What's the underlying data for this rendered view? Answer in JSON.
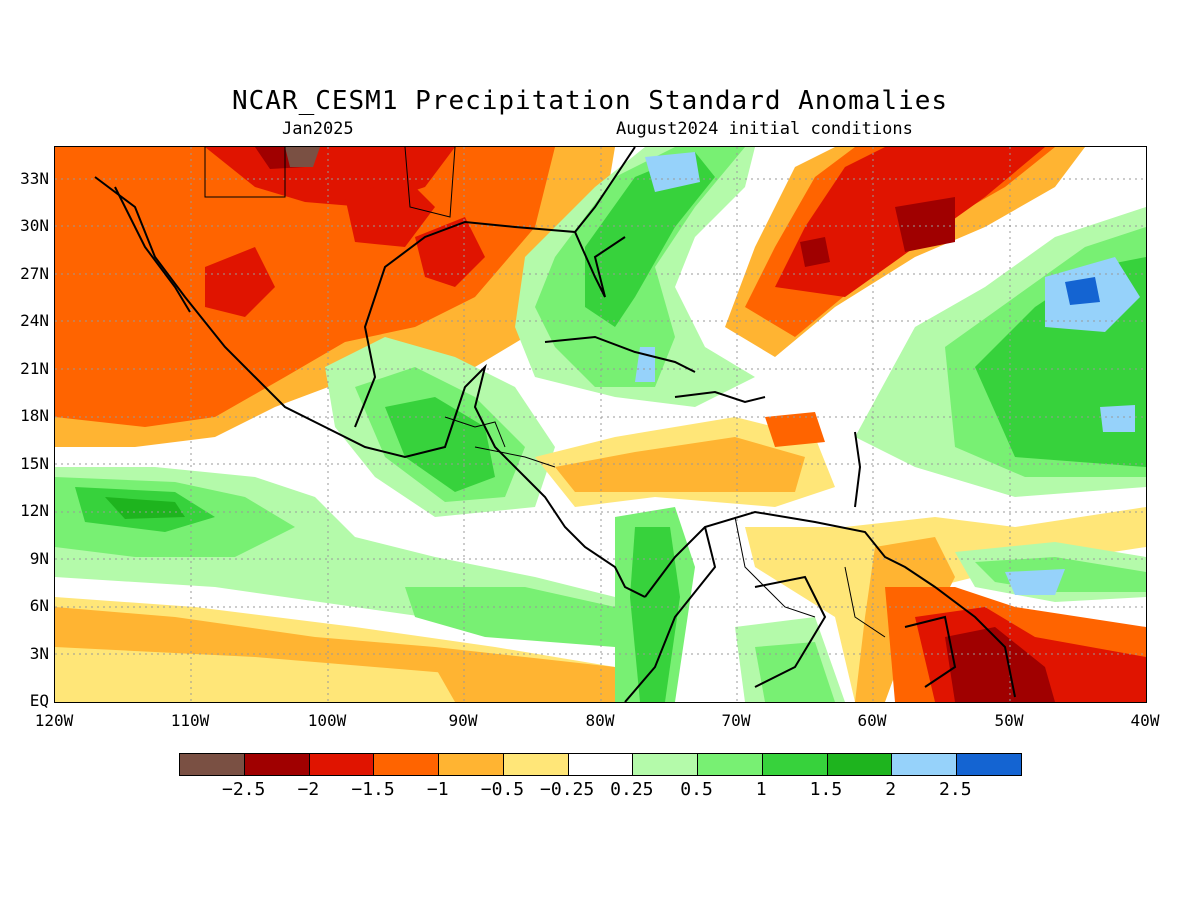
{
  "title": "NCAR_CESM1 Precipitation Standard Anomalies",
  "subtitle_left": "Jan2025",
  "subtitle_right": "August2024 initial conditions",
  "lat_labels": [
    "33N",
    "30N",
    "27N",
    "24N",
    "21N",
    "18N",
    "15N",
    "12N",
    "9N",
    "6N",
    "3N",
    "EQ"
  ],
  "lon_labels": [
    "120W",
    "110W",
    "100W",
    "90W",
    "80W",
    "70W",
    "60W",
    "50W",
    "40W"
  ],
  "colorbar": {
    "colors": [
      "#7a5043",
      "#a00000",
      "#e01400",
      "#ff6400",
      "#ffb432",
      "#ffe678",
      "#ffffff",
      "#b4faaa",
      "#78f073",
      "#37d23c",
      "#1eb41e",
      "#96d2fa",
      "#1464d2"
    ],
    "labels": [
      "-2.5",
      "-2",
      "-1.5",
      "-1",
      "-0.5",
      "-0.25",
      "0.25",
      "0.5",
      "1",
      "1.5",
      "2",
      "2.5"
    ]
  },
  "colors": {
    "dark_brown": "#7a5043",
    "dark_red": "#a00000",
    "red": "#e01400",
    "orange": "#ff6400",
    "light_orange": "#ffb432",
    "pale_yellow": "#ffe678",
    "white": "#ffffff",
    "pale_green": "#b4faaa",
    "light_green": "#78f073",
    "green": "#37d23c",
    "dark_green": "#1eb41e",
    "light_blue": "#96d2fa",
    "blue": "#1464d2"
  }
}
